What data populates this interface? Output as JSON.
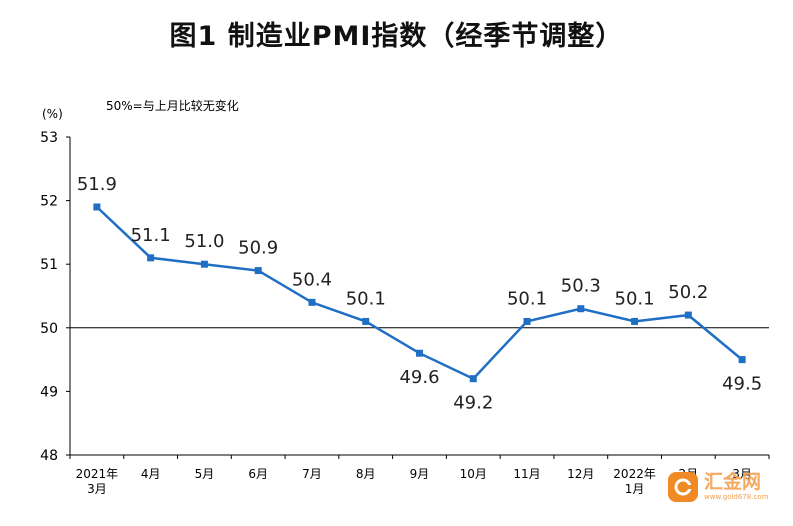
{
  "title": "图1 制造业PMI指数（经季节调整）",
  "watermark": {
    "name": "汇金网",
    "url": "www.gold678.com"
  },
  "chart_data": {
    "type": "line",
    "unit_label": "(%)",
    "note": "50%=与上月比较无变化",
    "categories": [
      [
        "2021年",
        "3月"
      ],
      [
        "4月"
      ],
      [
        "5月"
      ],
      [
        "6月"
      ],
      [
        "7月"
      ],
      [
        "8月"
      ],
      [
        "9月"
      ],
      [
        "10月"
      ],
      [
        "11月"
      ],
      [
        "12月"
      ],
      [
        "2022年",
        "1月"
      ],
      [
        "2月"
      ],
      [
        "3月"
      ]
    ],
    "series": [
      {
        "values": [
          51.9,
          51.1,
          51.0,
          50.9,
          50.4,
          50.1,
          49.6,
          49.2,
          50.1,
          50.3,
          50.1,
          50.2,
          49.5
        ]
      }
    ],
    "data_labels": [
      "51.9",
      "51.1",
      "51.0",
      "50.9",
      "50.4",
      "50.1",
      "49.6",
      "49.2",
      "50.1",
      "50.3",
      "50.1",
      "50.2",
      "49.5"
    ],
    "ylim": [
      48,
      53
    ],
    "yticks": [
      "48",
      "49",
      "50",
      "51",
      "52",
      "53"
    ],
    "reference_line": 50,
    "grid": false,
    "colors": {
      "line": "#1f6fc5",
      "marker": "#1f6fc5",
      "axis": "#000000"
    }
  }
}
